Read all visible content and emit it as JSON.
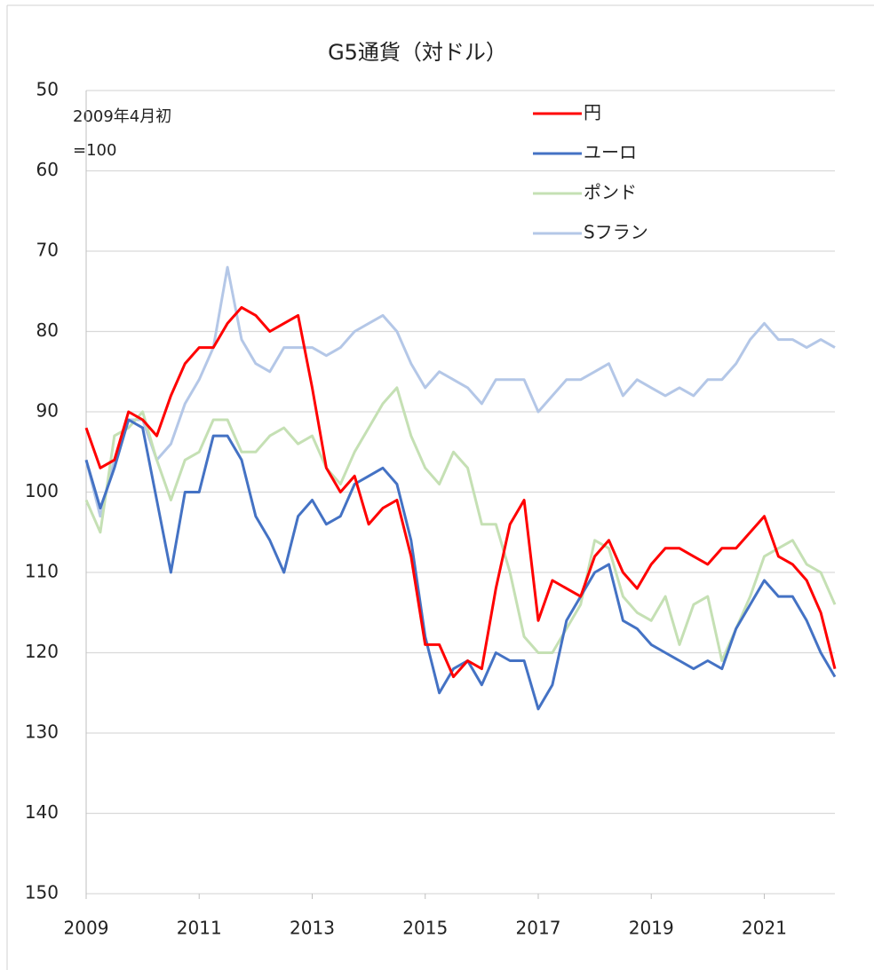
{
  "chart_data": {
    "type": "line",
    "title": "G5通貨（対ドル）",
    "annotation": [
      "2009年4月初",
      "=100"
    ],
    "x": [
      2009,
      2009.25,
      2009.5,
      2009.75,
      2010,
      2010.25,
      2010.5,
      2010.75,
      2011,
      2011.25,
      2011.5,
      2011.75,
      2012,
      2012.25,
      2012.5,
      2012.75,
      2013,
      2013.25,
      2013.5,
      2013.75,
      2014,
      2014.25,
      2014.5,
      2014.75,
      2015,
      2015.25,
      2015.5,
      2015.75,
      2016,
      2016.25,
      2016.5,
      2016.75,
      2017,
      2017.25,
      2017.5,
      2017.75,
      2018,
      2018.25,
      2018.5,
      2018.75,
      2019,
      2019.25,
      2019.5,
      2019.75,
      2020,
      2020.25,
      2020.5,
      2020.75,
      2021,
      2021.25,
      2021.5,
      2021.75,
      2022,
      2022.25
    ],
    "series": [
      {
        "name": "円",
        "color": "#ff0000",
        "values": [
          92,
          97,
          96,
          90,
          91,
          93,
          88,
          84,
          82,
          82,
          79,
          77,
          78,
          80,
          79,
          78,
          87,
          97,
          100,
          98,
          104,
          102,
          101,
          108,
          119,
          119,
          123,
          121,
          122,
          112,
          104,
          101,
          116,
          111,
          112,
          113,
          108,
          106,
          110,
          112,
          109,
          107,
          107,
          108,
          109,
          107,
          107,
          105,
          103,
          108,
          109,
          111,
          115,
          122
        ]
      },
      {
        "name": "ユーロ",
        "color": "#4472c4",
        "values": [
          96,
          102,
          97,
          91,
          92,
          101,
          110,
          100,
          100,
          93,
          93,
          96,
          103,
          106,
          110,
          103,
          101,
          104,
          103,
          99,
          98,
          97,
          99,
          106,
          118,
          125,
          122,
          121,
          124,
          120,
          121,
          121,
          127,
          124,
          116,
          113,
          110,
          109,
          116,
          117,
          119,
          120,
          121,
          122,
          121,
          122,
          117,
          114,
          111,
          113,
          113,
          116,
          120,
          123
        ]
      },
      {
        "name": "ポンド",
        "color": "#c5e0b4",
        "values": [
          101,
          105,
          93,
          92,
          90,
          96,
          101,
          96,
          95,
          91,
          91,
          95,
          95,
          93,
          92,
          94,
          93,
          97,
          99,
          95,
          92,
          89,
          87,
          93,
          97,
          99,
          95,
          97,
          104,
          104,
          110,
          118,
          120,
          120,
          117,
          114,
          106,
          107,
          113,
          115,
          116,
          113,
          119,
          114,
          113,
          121,
          117,
          113,
          108,
          107,
          106,
          109,
          110,
          114
        ]
      },
      {
        "name": "Sフラン",
        "color": "#b4c7e7",
        "values": [
          96,
          103,
          96,
          91,
          91,
          96,
          94,
          89,
          86,
          82,
          72,
          81,
          84,
          85,
          82,
          82,
          82,
          83,
          82,
          80,
          79,
          78,
          80,
          84,
          87,
          85,
          86,
          87,
          89,
          86,
          86,
          86,
          90,
          88,
          86,
          86,
          85,
          84,
          88,
          86,
          87,
          88,
          87,
          88,
          86,
          86,
          84,
          81,
          79,
          81,
          81,
          82,
          81,
          82
        ]
      }
    ],
    "xlim": [
      2009,
      2022.25
    ],
    "xticks": [
      2009,
      2011,
      2013,
      2015,
      2017,
      2019,
      2021
    ],
    "ylim": [
      50,
      150
    ],
    "yticks": [
      50,
      60,
      70,
      80,
      90,
      100,
      110,
      120,
      130,
      140,
      150
    ],
    "invert_y": true,
    "grid": true,
    "legend": "top-right"
  }
}
